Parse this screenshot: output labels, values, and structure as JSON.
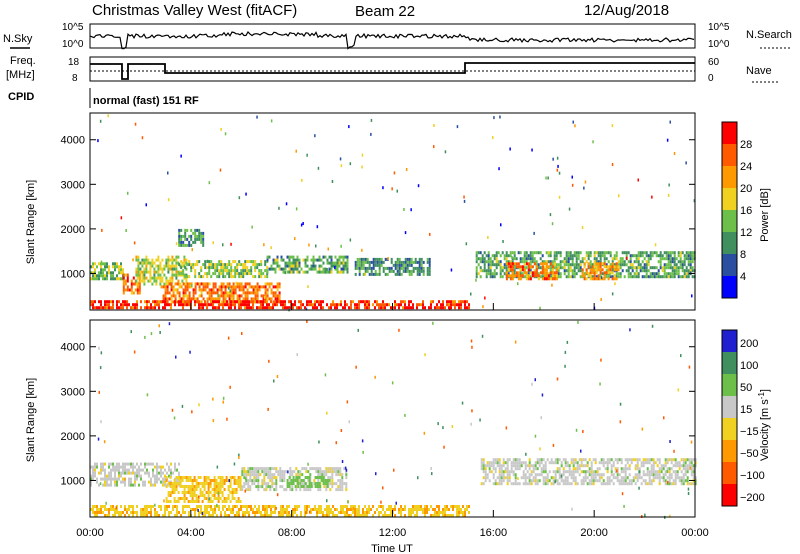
{
  "header": {
    "station": "Christmas Valley West (fitACF)",
    "beam": "Beam 22",
    "date": "12/Aug/2018"
  },
  "top_panel": {
    "nsky_label": "N.Sky",
    "nsearch_label": "N.Search",
    "freq_label_1": "Freq.",
    "freq_label_2": "[MHz]",
    "nave_label": "Nave",
    "cpid_label": "CPID",
    "cpid_value": "normal (fast) 151 RF",
    "noise_left_ticks": [
      "10^5",
      "10^0"
    ],
    "noise_right_ticks": [
      "10^5",
      "10^0"
    ],
    "freq_ticks": [
      "18",
      "8"
    ],
    "nave_ticks": [
      "60",
      "0"
    ]
  },
  "colors": {
    "power": [
      "#0000ff",
      "#2a4fa0",
      "#3f8f5f",
      "#6cc04a",
      "#f0d020",
      "#ff9900",
      "#ff5a00",
      "#ff0000"
    ],
    "velocity": [
      "#2020d0",
      "#3f8f5f",
      "#6cc04a",
      "#c8c8c8",
      "#f0d020",
      "#ff9900",
      "#ff5a00",
      "#ff0000"
    ]
  },
  "chart_data": [
    {
      "type": "heatmap",
      "title": "Power",
      "xlabel": "",
      "ylabel": "Slant Range [km]",
      "x_range_hours": [
        0,
        24
      ],
      "ylim": [
        180,
        4600
      ],
      "y_ticks": [
        1000,
        2000,
        3000,
        4000
      ],
      "colorbar": {
        "label": "Power [dB]",
        "range": [
          0,
          32
        ],
        "ticks": [
          4,
          8,
          12,
          16,
          20,
          24,
          28
        ]
      },
      "echo_regions": [
        {
          "t": [
            0.0,
            1.3
          ],
          "r": [
            900,
            1250
          ],
          "power_db": 14
        },
        {
          "t": [
            1.3,
            2.0
          ],
          "r": [
            550,
            1000
          ],
          "power_db": 24
        },
        {
          "t": [
            1.8,
            3.8
          ],
          "r": [
            750,
            1400
          ],
          "power_db": 16
        },
        {
          "t": [
            2.8,
            7.5
          ],
          "r": [
            350,
            800
          ],
          "power_db": 24
        },
        {
          "t": [
            3.5,
            7.0
          ],
          "r": [
            900,
            1300
          ],
          "power_db": 14
        },
        {
          "t": [
            3.5,
            4.5
          ],
          "r": [
            1600,
            2000
          ],
          "power_db": 10
        },
        {
          "t": [
            7.0,
            10.2
          ],
          "r": [
            1000,
            1400
          ],
          "power_db": 12
        },
        {
          "t": [
            10.5,
            13.5
          ],
          "r": [
            950,
            1350
          ],
          "power_db": 10
        },
        {
          "t": [
            15.3,
            24.0
          ],
          "r": [
            900,
            1500
          ],
          "power_db": 12
        },
        {
          "t": [
            16.5,
            18.5
          ],
          "r": [
            900,
            1250
          ],
          "power_db": 24
        },
        {
          "t": [
            19.5,
            21.0
          ],
          "r": [
            900,
            1250
          ],
          "power_db": 22
        },
        {
          "t": [
            0.0,
            15.0
          ],
          "r": [
            200,
            400
          ],
          "power_db": 28
        }
      ]
    },
    {
      "type": "heatmap",
      "title": "Velocity",
      "xlabel": "Time UT",
      "ylabel": "Slant Range [km]",
      "x_range_hours": [
        0,
        24
      ],
      "x_tick_labels": [
        "00:00",
        "04:00",
        "08:00",
        "12:00",
        "16:00",
        "20:00",
        "00:00"
      ],
      "ylim": [
        180,
        4600
      ],
      "y_ticks": [
        1000,
        2000,
        3000,
        4000
      ],
      "colorbar": {
        "label": "Velocity [m s",
        "label_sup": "-1",
        "label_end": "]",
        "range": [
          -250,
          250
        ],
        "ticks": [
          "200",
          "100",
          "50",
          "15",
          "−15",
          "−50",
          "−100",
          "−200"
        ]
      },
      "echo_regions": [
        {
          "t": [
            0.0,
            3.5
          ],
          "r": [
            900,
            1400
          ],
          "velocity": 0
        },
        {
          "t": [
            3.0,
            6.0
          ],
          "r": [
            500,
            1100
          ],
          "velocity": -40
        },
        {
          "t": [
            6.0,
            10.2
          ],
          "r": [
            800,
            1300
          ],
          "velocity": 0
        },
        {
          "t": [
            7.8,
            9.5
          ],
          "r": [
            850,
            1100
          ],
          "velocity": 40
        },
        {
          "t": [
            15.5,
            24.0
          ],
          "r": [
            950,
            1500
          ],
          "velocity": 0
        },
        {
          "t": [
            0.0,
            15.0
          ],
          "r": [
            200,
            450
          ],
          "velocity": -40
        }
      ]
    }
  ]
}
